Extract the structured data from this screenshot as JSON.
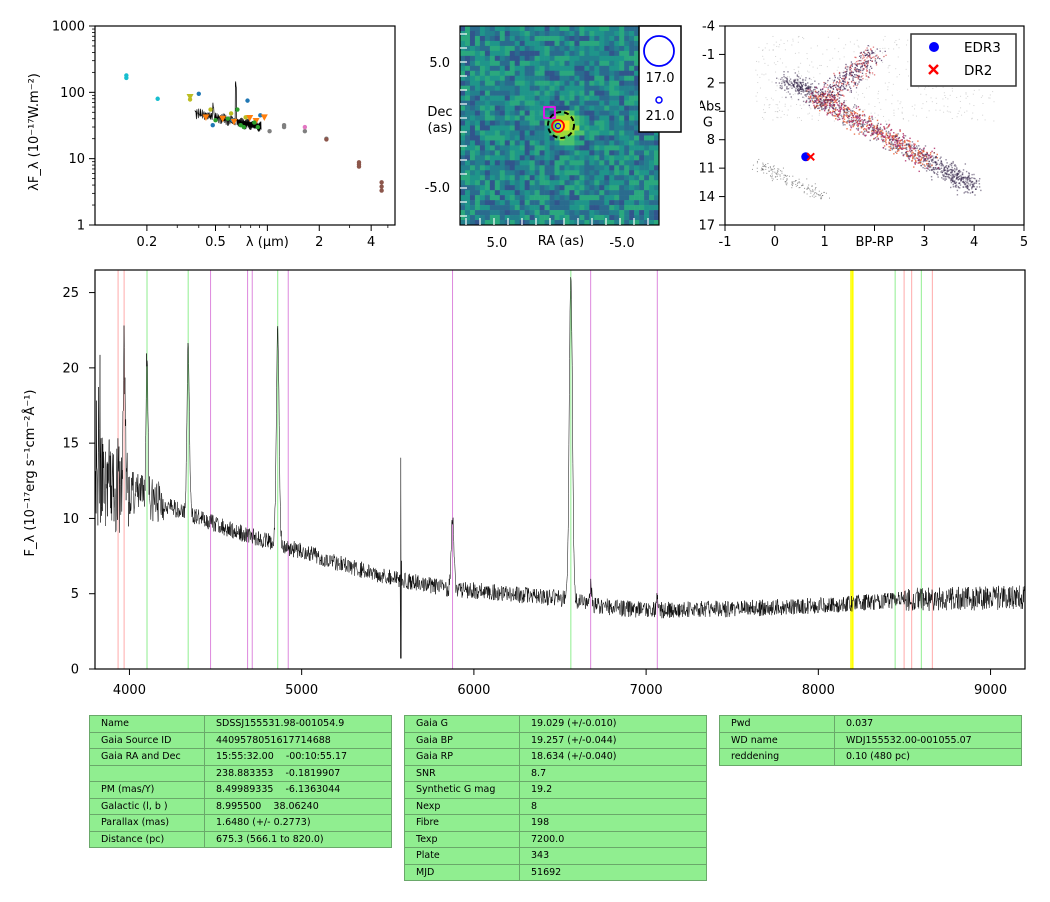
{
  "chart_data": [
    {
      "type": "scatter",
      "panel": "sed",
      "ylabel": "λF_λ (10⁻¹⁷W.m⁻²)",
      "xlabel": "λ (μm)",
      "xscale": "log",
      "yscale": "log",
      "xlim": [
        0.1,
        5.5
      ],
      "ylim": [
        1,
        1000
      ],
      "xtick_labels": [
        "0.2",
        "0.5",
        "λ (μm)",
        "2",
        "4"
      ],
      "ytick_labels": [
        "1",
        "10",
        "100",
        "1000"
      ],
      "series": [
        {
          "color": "#17becf",
          "points": [
            [
              0.152,
              180
            ],
            [
              0.152,
              165
            ],
            [
              0.231,
              80
            ]
          ]
        },
        {
          "color": "#bcbd22",
          "points": [
            [
              0.356,
              85
            ],
            [
              0.356,
              78
            ],
            [
              0.468,
              55
            ],
            [
              0.616,
              48
            ],
            [
              0.748,
              42
            ]
          ]
        },
        {
          "color": "#1f77b4",
          "points": [
            [
              0.4,
              95
            ],
            [
              0.482,
              32
            ],
            [
              0.626,
              38
            ],
            [
              0.767,
              75
            ],
            [
              0.91,
              45
            ]
          ]
        },
        {
          "color": "#ff7f0e",
          "points": [
            [
              0.44,
              42
            ],
            [
              0.55,
              40
            ],
            [
              0.64,
              36
            ],
            [
              0.79,
              41
            ],
            [
              0.96,
              42
            ],
            [
              0.86,
              37
            ]
          ]
        },
        {
          "color": "#2ca02c",
          "points": [
            [
              0.5,
              38
            ],
            [
              0.59,
              40
            ],
            [
              0.67,
              55
            ],
            [
              0.7,
              32
            ],
            [
              0.73,
              30
            ],
            [
              0.84,
              35
            ],
            [
              0.88,
              30
            ]
          ]
        },
        {
          "color": "#7f7f7f",
          "points": [
            [
              1.03,
              26
            ],
            [
              1.25,
              32
            ],
            [
              1.25,
              30
            ],
            [
              1.65,
              26
            ],
            [
              2.2,
              20
            ]
          ]
        },
        {
          "color": "#e377c2",
          "points": [
            [
              1.65,
              30
            ]
          ]
        },
        {
          "color": "#8c564b",
          "points": [
            [
              2.2,
              19.5
            ],
            [
              3.4,
              8.8
            ],
            [
              3.4,
              8.2
            ],
            [
              3.4,
              7.6
            ],
            [
              4.6,
              4.4
            ],
            [
              4.6,
              3.8
            ],
            [
              4.6,
              3.3
            ]
          ]
        }
      ],
      "spectrum_note": "black model curve between 0.38 and 0.92 μm"
    },
    {
      "type": "heatmap",
      "panel": "image",
      "xlabel": "RA (as)",
      "ylabel": "Dec\n(as)",
      "xtick_labels": [
        "5.0",
        "-5.0"
      ],
      "ytick_labels": [
        "5.0",
        "-5.0"
      ],
      "legend_labels": [
        "17.0",
        "21.0"
      ]
    },
    {
      "type": "scatter",
      "panel": "hrd",
      "xlabel": "BP-RP",
      "ylabel": "Abs\nG",
      "xlim": [
        -1,
        5
      ],
      "ylim": [
        17,
        -4
      ],
      "xtick_labels": [
        "-1",
        "0",
        "1",
        "BP-RP",
        "3",
        "4",
        "5"
      ],
      "ytick_labels": [
        "-4",
        "-1",
        "2",
        "Abs",
        "8",
        "11",
        "14",
        "17"
      ],
      "series": [
        {
          "name": "EDR3",
          "color": "#0000ff",
          "x": [
            0.62
          ],
          "y": [
            9.8
          ]
        },
        {
          "name": "DR2",
          "color": "#ff0000",
          "x": [
            0.72
          ],
          "y": [
            9.8
          ]
        }
      ],
      "legend": "top-right"
    },
    {
      "type": "line",
      "panel": "spectrum",
      "ylabel": "F_λ (10⁻¹⁷erg s⁻¹cm⁻²Å⁻¹)",
      "xlim": [
        3800,
        9200
      ],
      "ylim": [
        0,
        26.5
      ],
      "xticks": [
        4000,
        5000,
        6000,
        7000,
        8000,
        9000
      ],
      "yticks": [
        0,
        5,
        10,
        15,
        20,
        25
      ],
      "continuum": [
        [
          3800,
          12.5
        ],
        [
          4000,
          11.8
        ],
        [
          4300,
          10.5
        ],
        [
          4600,
          9.2
        ],
        [
          5000,
          7.8
        ],
        [
          5400,
          6.4
        ],
        [
          5800,
          5.4
        ],
        [
          6200,
          5.0
        ],
        [
          6500,
          4.7
        ],
        [
          6700,
          4.2
        ],
        [
          7000,
          3.9
        ],
        [
          7500,
          4.0
        ],
        [
          8000,
          4.2
        ],
        [
          8500,
          4.6
        ],
        [
          9000,
          4.7
        ],
        [
          9200,
          4.8
        ]
      ],
      "emission_lines": [
        {
          "x": 3970,
          "peak": 22.0,
          "width": 5
        },
        {
          "x": 4102,
          "peak": 21.0,
          "width": 6
        },
        {
          "x": 4341,
          "peak": 21.5,
          "width": 7
        },
        {
          "x": 4861,
          "peak": 22.5,
          "width": 8
        },
        {
          "x": 5577,
          "peak": 17.8,
          "width": 1.5
        },
        {
          "x": 5876,
          "peak": 10.0,
          "width": 8
        },
        {
          "x": 6563,
          "peak": 26.5,
          "width": 9
        },
        {
          "x": 6678,
          "peak": 5.5,
          "width": 8
        },
        {
          "x": 7065,
          "peak": 4.7,
          "width": 6
        }
      ],
      "vlines": [
        {
          "x": 3934,
          "color": "#ffaaaa"
        },
        {
          "x": 3969,
          "color": "#ffaaaa"
        },
        {
          "x": 4102,
          "color": "#90ee90"
        },
        {
          "x": 4341,
          "color": "#90ee90"
        },
        {
          "x": 4471,
          "color": "#dd88dd"
        },
        {
          "x": 4686,
          "color": "#dd88dd"
        },
        {
          "x": 4713,
          "color": "#dd88dd"
        },
        {
          "x": 4861,
          "color": "#90ee90"
        },
        {
          "x": 4922,
          "color": "#dd88dd"
        },
        {
          "x": 5876,
          "color": "#dd88dd"
        },
        {
          "x": 6563,
          "color": "#90ee90"
        },
        {
          "x": 6678,
          "color": "#dd88dd"
        },
        {
          "x": 7065,
          "color": "#dd88dd"
        },
        {
          "x": 8200,
          "color": "#ffff00"
        },
        {
          "x": 8190,
          "color": "#ffff00"
        },
        {
          "x": 8446,
          "color": "#90ee90"
        },
        {
          "x": 8498,
          "color": "#ffaaaa"
        },
        {
          "x": 8542,
          "color": "#ffaaaa"
        },
        {
          "x": 8598,
          "color": "#90ee90"
        },
        {
          "x": 8662,
          "color": "#ffaaaa"
        }
      ]
    }
  ],
  "tables": {
    "t1": [
      [
        "Name",
        "SDSSJ155531.98-001054.9"
      ],
      [
        "Gaia Source ID",
        "4409578051617714688"
      ],
      [
        "Gaia RA and Dec",
        "15:55:32.00    -00:10:55.17"
      ],
      [
        "",
        "238.883353    -0.1819907"
      ],
      [
        "PM (mas/Y)",
        "8.49989335    -6.1363044"
      ],
      [
        "Galactic (l, b )",
        "8.995500    38.06240"
      ],
      [
        "Parallax (mas)",
        "1.6480 (+/- 0.2773)"
      ],
      [
        "Distance (pc)",
        "675.3 (566.1 to 820.0)"
      ]
    ],
    "t2": [
      [
        "Gaia G",
        "19.029 (+/-0.010)"
      ],
      [
        "Gaia BP",
        "19.257 (+/-0.044)"
      ],
      [
        "Gaia RP",
        "18.634 (+/-0.040)"
      ],
      [
        "SNR",
        "8.7"
      ],
      [
        "Synthetic G mag",
        "19.2"
      ],
      [
        "Nexp",
        "8"
      ],
      [
        "Fibre",
        "198"
      ],
      [
        "Texp",
        "7200.0"
      ],
      [
        "Plate",
        "343"
      ],
      [
        "MJD",
        "51692"
      ]
    ],
    "t3": [
      [
        "Pwd",
        "0.037"
      ],
      [
        "WD name",
        "WDJ155532.00-001055.07"
      ],
      [
        "reddening",
        "0.10 (480 pc)"
      ]
    ]
  }
}
